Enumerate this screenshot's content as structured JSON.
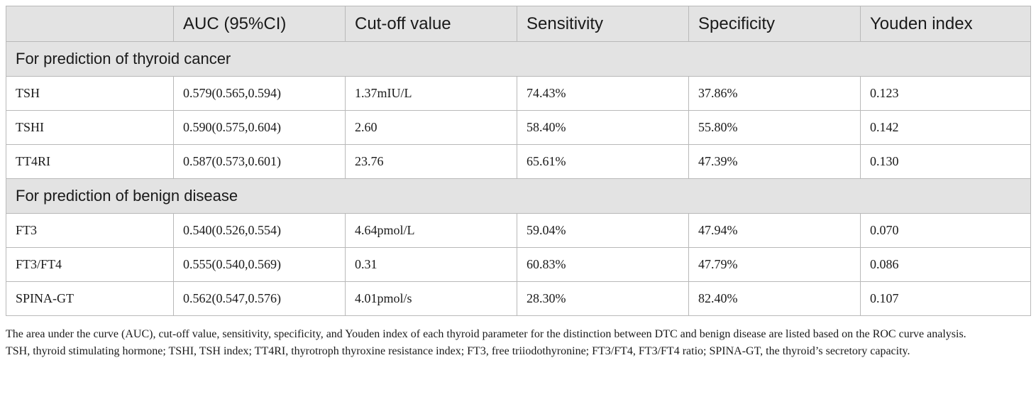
{
  "table": {
    "headers": [
      "",
      "AUC (95%CI)",
      "Cut-off value",
      "Sensitivity",
      "Specificity",
      "Youden index"
    ],
    "sections": [
      {
        "title": "For prediction of thyroid cancer",
        "rows": [
          [
            "TSH",
            "0.579(0.565,0.594)",
            "1.37mIU/L",
            "74.43%",
            "37.86%",
            "0.123"
          ],
          [
            "TSHI",
            "0.590(0.575,0.604)",
            "2.60",
            "58.40%",
            "55.80%",
            "0.142"
          ],
          [
            "TT4RI",
            "0.587(0.573,0.601)",
            "23.76",
            "65.61%",
            "47.39%",
            "0.130"
          ]
        ]
      },
      {
        "title": "For prediction of benign disease",
        "rows": [
          [
            "FT3",
            "0.540(0.526,0.554)",
            "4.64pmol/L",
            "59.04%",
            "47.94%",
            "0.070"
          ],
          [
            "FT3/FT4",
            "0.555(0.540,0.569)",
            "0.31",
            "60.83%",
            "47.79%",
            "0.086"
          ],
          [
            "SPINA-GT",
            "0.562(0.547,0.576)",
            "4.01pmol/s",
            "28.30%",
            "82.40%",
            "0.107"
          ]
        ]
      }
    ]
  },
  "footnotes": [
    "The area under the curve (AUC), cut-off value, sensitivity, specificity, and Youden index of each thyroid parameter for the distinction between DTC and benign disease are listed based on the ROC curve analysis.",
    "TSH, thyroid stimulating hormone; TSHI, TSH index; TT4RI, thyrotroph thyroxine resistance index; FT3, free triiodothyronine; FT3/FT4, FT3/FT4 ratio; SPINA-GT, the thyroid’s secretory capacity."
  ]
}
